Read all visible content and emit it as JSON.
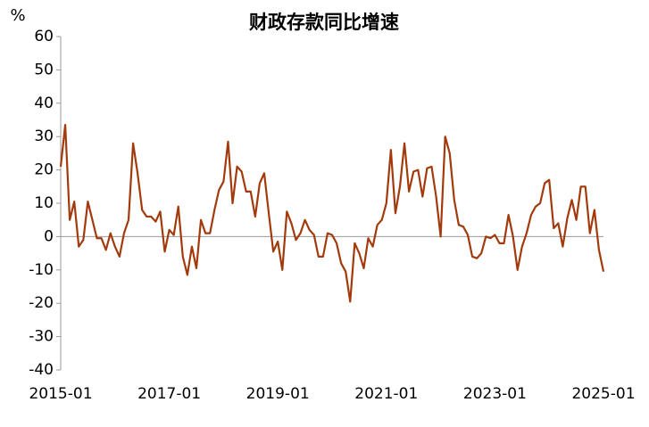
{
  "chart_data": {
    "type": "line",
    "title": "财政存款同比增速",
    "y_label": "%",
    "categories": [
      "2015-01",
      null,
      null,
      null,
      null,
      null,
      null,
      null,
      null,
      null,
      null,
      null,
      null,
      null,
      null,
      null,
      null,
      null,
      null,
      null,
      null,
      null,
      null,
      null,
      "2017-01",
      null,
      null,
      null,
      null,
      null,
      null,
      null,
      null,
      null,
      null,
      null,
      null,
      null,
      null,
      null,
      null,
      null,
      null,
      null,
      null,
      null,
      null,
      null,
      "2019-01",
      null,
      null,
      null,
      null,
      null,
      null,
      null,
      null,
      null,
      null,
      null,
      null,
      null,
      null,
      null,
      null,
      null,
      null,
      null,
      null,
      null,
      null,
      null,
      "2021-01",
      null,
      null,
      null,
      null,
      null,
      null,
      null,
      null,
      null,
      null,
      null,
      null,
      null,
      null,
      null,
      null,
      null,
      null,
      null,
      null,
      null,
      null,
      null,
      "2023-01",
      null,
      null,
      null,
      null,
      null,
      null,
      null,
      null,
      null,
      null,
      null,
      null,
      null,
      null,
      null,
      null,
      null,
      null,
      null,
      null,
      null,
      null,
      null,
      "2025-01"
    ],
    "values": [
      21,
      33.5,
      5,
      10.5,
      -3,
      -1,
      10.5,
      5,
      -0.5,
      -0.5,
      -4,
      1,
      -3,
      -6,
      1,
      5,
      28,
      19,
      8,
      6,
      6,
      4.5,
      7.5,
      -4.5,
      2,
      0.5,
      9,
      -6,
      -11.5,
      -3,
      -9.5,
      5,
      1,
      1,
      8,
      14,
      16.5,
      28.5,
      10,
      21,
      19.5,
      13.5,
      13.5,
      6,
      16,
      19,
      7,
      -4.5,
      -1.5,
      -10,
      7.5,
      4,
      -1,
      1,
      5,
      2,
      0.5,
      -6,
      -6,
      1,
      0.5,
      -2,
      -8,
      -10.5,
      -19.5,
      -2,
      -5,
      -9.5,
      -0.5,
      -3,
      3.5,
      5,
      10,
      26,
      7,
      15,
      28,
      13.5,
      19.5,
      20,
      12,
      20.5,
      21,
      12,
      0,
      30,
      25,
      11,
      3.5,
      3,
      0.5,
      -6,
      -6.5,
      -5,
      0,
      -0.5,
      0.5,
      -2,
      -2,
      6.5,
      0,
      -10,
      -3,
      1,
      6.5,
      9,
      10,
      16,
      17,
      2.5,
      4,
      -3,
      5.5,
      11,
      5,
      15,
      15,
      1,
      8,
      -4,
      -10.5
    ],
    "color": "#a33a0c",
    "ylim": [
      -40,
      60
    ],
    "yticks": [
      -40,
      -30,
      -20,
      -10,
      0,
      10,
      20,
      30,
      40,
      50,
      60
    ],
    "grid": false
  }
}
